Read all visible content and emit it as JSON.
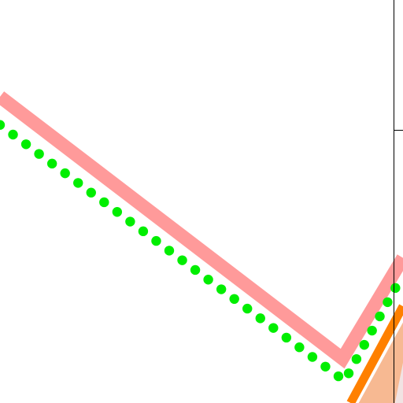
{
  "chart_data": {
    "type": "line",
    "title": "",
    "xlabel": "",
    "ylabel": "",
    "grid": false,
    "legend": "none",
    "xlim": [
      0,
      10
    ],
    "ylim": [
      0,
      10
    ],
    "series": [
      {
        "style": "thick-line",
        "color": "#ff9a9a",
        "x": [
          0,
          8.5,
          10
        ],
        "y": [
          7.6,
          1.1,
          3.6
        ]
      },
      {
        "style": "dotted",
        "color": "#00ee00",
        "x": [
          0,
          8.55,
          10
        ],
        "y": [
          6.9,
          0.55,
          3.2
        ]
      },
      {
        "style": "thick-line",
        "color": "#ff8000",
        "x": [
          8.7,
          10
        ],
        "y": [
          0,
          2.4
        ]
      }
    ],
    "bands": [
      {
        "color": "#f7b992",
        "x": [
          8.9,
          10
        ],
        "y_low": [
          0,
          0
        ],
        "y_high": [
          0,
          2.0
        ]
      },
      {
        "color": "#f1e3e3",
        "x": [
          9.8,
          10
        ],
        "y_low": [
          0,
          0
        ],
        "y_high": [
          0,
          1.0
        ]
      }
    ]
  }
}
